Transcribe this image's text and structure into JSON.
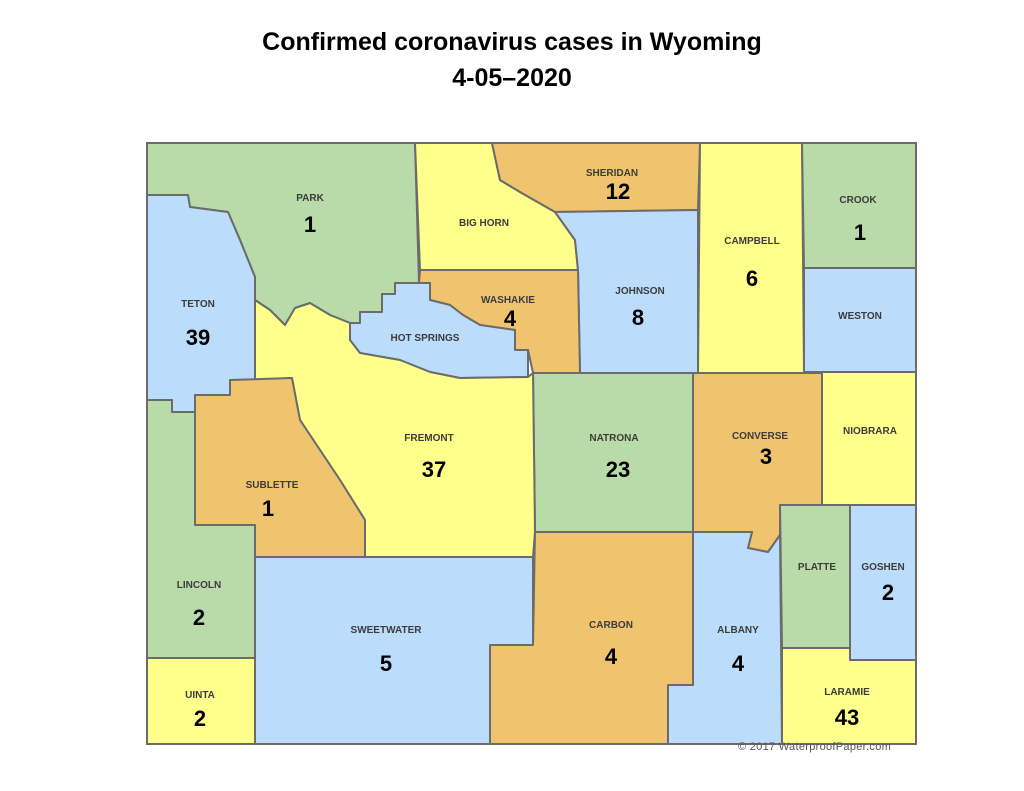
{
  "title": "Confirmed coronavirus cases in Wyoming",
  "subtitle": "4-05–2020",
  "copyright": "© 2017 WaterproofPaper.com",
  "colors": {
    "green": "#b9dba9",
    "blue": "#bcdcfb",
    "yellow": "#ffff8c",
    "orange": "#f0c46e",
    "border": "#6b6b6b"
  },
  "counties": [
    {
      "name": "PARK",
      "cases": "1",
      "color": "green"
    },
    {
      "name": "TETON",
      "cases": "39",
      "color": "blue"
    },
    {
      "name": "BIG HORN",
      "cases": "",
      "color": "yellow"
    },
    {
      "name": "SHERIDAN",
      "cases": "12",
      "color": "orange"
    },
    {
      "name": "JOHNSON",
      "cases": "8",
      "color": "blue"
    },
    {
      "name": "WASHAKIE",
      "cases": "4",
      "color": "orange"
    },
    {
      "name": "HOT SPRINGS",
      "cases": "",
      "color": "blue"
    },
    {
      "name": "CAMPBELL",
      "cases": "6",
      "color": "yellow"
    },
    {
      "name": "CROOK",
      "cases": "1",
      "color": "green"
    },
    {
      "name": "WESTON",
      "cases": "",
      "color": "blue"
    },
    {
      "name": "NIOBRARA",
      "cases": "",
      "color": "yellow"
    },
    {
      "name": "CONVERSE",
      "cases": "3",
      "color": "orange"
    },
    {
      "name": "NATRONA",
      "cases": "23",
      "color": "green"
    },
    {
      "name": "FREMONT",
      "cases": "37",
      "color": "yellow"
    },
    {
      "name": "SUBLETTE",
      "cases": "1",
      "color": "orange"
    },
    {
      "name": "LINCOLN",
      "cases": "2",
      "color": "green"
    },
    {
      "name": "UINTA",
      "cases": "2",
      "color": "yellow"
    },
    {
      "name": "SWEETWATER",
      "cases": "5",
      "color": "blue"
    },
    {
      "name": "CARBON",
      "cases": "4",
      "color": "orange"
    },
    {
      "name": "ALBANY",
      "cases": "4",
      "color": "blue"
    },
    {
      "name": "PLATTE",
      "cases": "",
      "color": "green"
    },
    {
      "name": "GOSHEN",
      "cases": "2",
      "color": "blue"
    },
    {
      "name": "LARAMIE",
      "cases": "43",
      "color": "yellow"
    }
  ]
}
